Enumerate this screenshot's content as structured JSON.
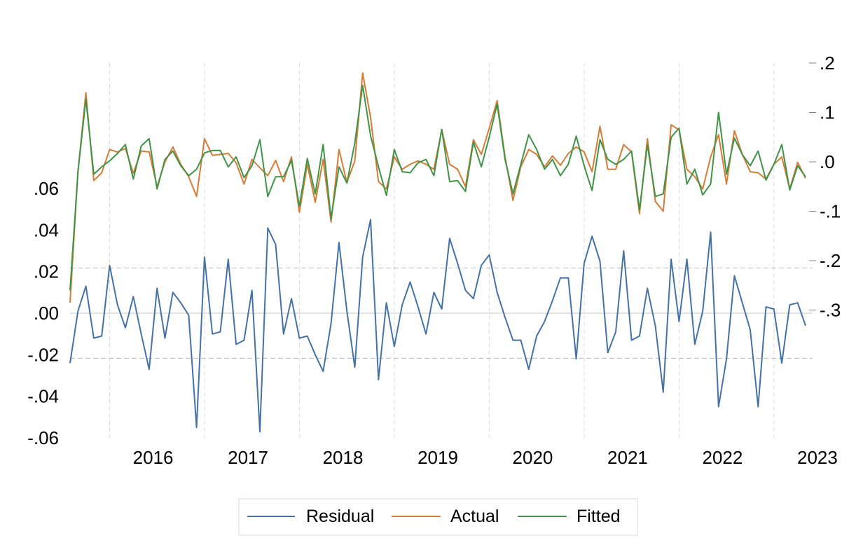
{
  "chart_data": {
    "type": "line",
    "title": "",
    "xlabel": "",
    "ylabel_left": "",
    "ylabel_right": "",
    "x_start": "2015-08",
    "x_end": "2023-05",
    "x_ticks": [
      "2016",
      "2017",
      "2018",
      "2019",
      "2020",
      "2021",
      "2022",
      "2023"
    ],
    "left_axis": {
      "range": [
        -0.06,
        0.06
      ],
      "ticks": [
        0.06,
        0.04,
        0.02,
        0.0,
        -0.02,
        -0.04,
        -0.06
      ],
      "tick_labels": [
        ".06",
        ".04",
        ".02",
        ".00",
        "-.02",
        "-.04",
        "-.06"
      ]
    },
    "right_axis": {
      "range": [
        -0.3,
        0.2
      ],
      "ticks": [
        0.2,
        0.1,
        0.0,
        -0.1,
        -0.2,
        -0.3
      ],
      "tick_labels": [
        ".2",
        ".1",
        ".0",
        "-.1",
        "-.2",
        "-.3"
      ]
    },
    "residual_bands": [
      0.0217,
      -0.0217
    ],
    "legend_position": "bottom",
    "series": [
      {
        "name": "Residual",
        "axis": "left",
        "color": "#4472a8",
        "values": [
          -0.024,
          0.001,
          0.013,
          -0.012,
          -0.011,
          0.023,
          0.004,
          -0.007,
          0.008,
          -0.01,
          -0.027,
          0.012,
          -0.012,
          0.01,
          0.005,
          -0.001,
          -0.055,
          0.027,
          -0.01,
          -0.009,
          0.026,
          -0.015,
          -0.013,
          0.011,
          -0.057,
          0.041,
          0.033,
          -0.01,
          0.007,
          -0.012,
          -0.011,
          -0.02,
          -0.028,
          -0.005,
          0.034,
          0.001,
          -0.026,
          0.027,
          0.045,
          -0.032,
          0.005,
          -0.016,
          0.004,
          0.015,
          0.003,
          -0.01,
          0.01,
          0.002,
          0.036,
          0.024,
          0.011,
          0.007,
          0.023,
          0.028,
          0.01,
          -0.002,
          -0.013,
          -0.013,
          -0.027,
          -0.011,
          -0.004,
          0.006,
          0.017,
          0.017,
          -0.022,
          0.024,
          0.037,
          0.025,
          -0.019,
          -0.009,
          0.03,
          -0.013,
          -0.011,
          0.012,
          -0.006,
          -0.038,
          0.026,
          -0.004,
          0.026,
          -0.015,
          0.001,
          0.039,
          -0.045,
          -0.022,
          0.018,
          0.005,
          -0.008,
          -0.045,
          0.003,
          0.002,
          -0.024,
          0.004,
          0.005,
          -0.006
        ]
      },
      {
        "name": "Actual",
        "axis": "right",
        "color": "#d77c35",
        "values": [
          -0.285,
          -0.02,
          0.14,
          -0.038,
          -0.022,
          0.025,
          0.02,
          0.027,
          -0.023,
          0.022,
          0.02,
          -0.05,
          0.0,
          0.03,
          -0.005,
          -0.03,
          -0.07,
          0.047,
          0.013,
          0.015,
          0.017,
          -0.002,
          -0.045,
          0.005,
          -0.012,
          -0.028,
          0.003,
          -0.04,
          0.01,
          -0.102,
          -0.005,
          -0.082,
          0.005,
          -0.122,
          0.025,
          -0.042,
          0.002,
          0.18,
          0.09,
          -0.04,
          -0.055,
          0.01,
          -0.015,
          -0.005,
          0.002,
          -0.005,
          -0.015,
          0.065,
          -0.005,
          -0.015,
          -0.05,
          0.045,
          0.015,
          0.068,
          0.124,
          0.01,
          -0.078,
          -0.01,
          0.025,
          0.015,
          -0.01,
          0.012,
          -0.007,
          0.017,
          0.03,
          0.02,
          -0.02,
          0.072,
          -0.015,
          -0.015,
          0.035,
          0.02,
          -0.105,
          0.047,
          -0.08,
          -0.1,
          0.075,
          0.065,
          -0.015,
          -0.03,
          -0.055,
          0.01,
          0.055,
          -0.045,
          0.063,
          0.015,
          -0.02,
          -0.022,
          -0.035,
          -0.005,
          0.01,
          -0.055,
          -0.001,
          -0.033
        ]
      },
      {
        "name": "Fitted",
        "axis": "right",
        "color": "#3f9447",
        "values": [
          -0.26,
          -0.02,
          0.127,
          -0.025,
          -0.01,
          0.002,
          0.017,
          0.035,
          -0.035,
          0.032,
          0.047,
          -0.055,
          0.005,
          0.022,
          -0.008,
          -0.028,
          -0.015,
          0.018,
          0.023,
          0.023,
          -0.01,
          0.01,
          -0.032,
          -0.008,
          0.045,
          -0.07,
          -0.03,
          -0.03,
          0.003,
          -0.09,
          0.007,
          -0.065,
          0.035,
          -0.115,
          -0.01,
          -0.043,
          0.038,
          0.155,
          0.053,
          -0.01,
          -0.068,
          0.025,
          -0.02,
          -0.022,
          -0.002,
          0.005,
          -0.028,
          0.066,
          -0.04,
          -0.038,
          -0.06,
          0.04,
          -0.01,
          0.05,
          0.117,
          0.005,
          -0.065,
          -0.005,
          0.055,
          0.025,
          -0.015,
          0.005,
          -0.028,
          -0.005,
          0.052,
          -0.008,
          -0.058,
          0.045,
          0.005,
          -0.005,
          0.005,
          0.022,
          -0.097,
          0.035,
          -0.07,
          -0.065,
          0.05,
          0.068,
          -0.045,
          -0.015,
          -0.067,
          -0.045,
          0.1,
          -0.025,
          0.048,
          0.015,
          -0.008,
          0.022,
          -0.037,
          -0.005,
          0.035,
          -0.057,
          -0.008,
          -0.03
        ]
      }
    ]
  }
}
